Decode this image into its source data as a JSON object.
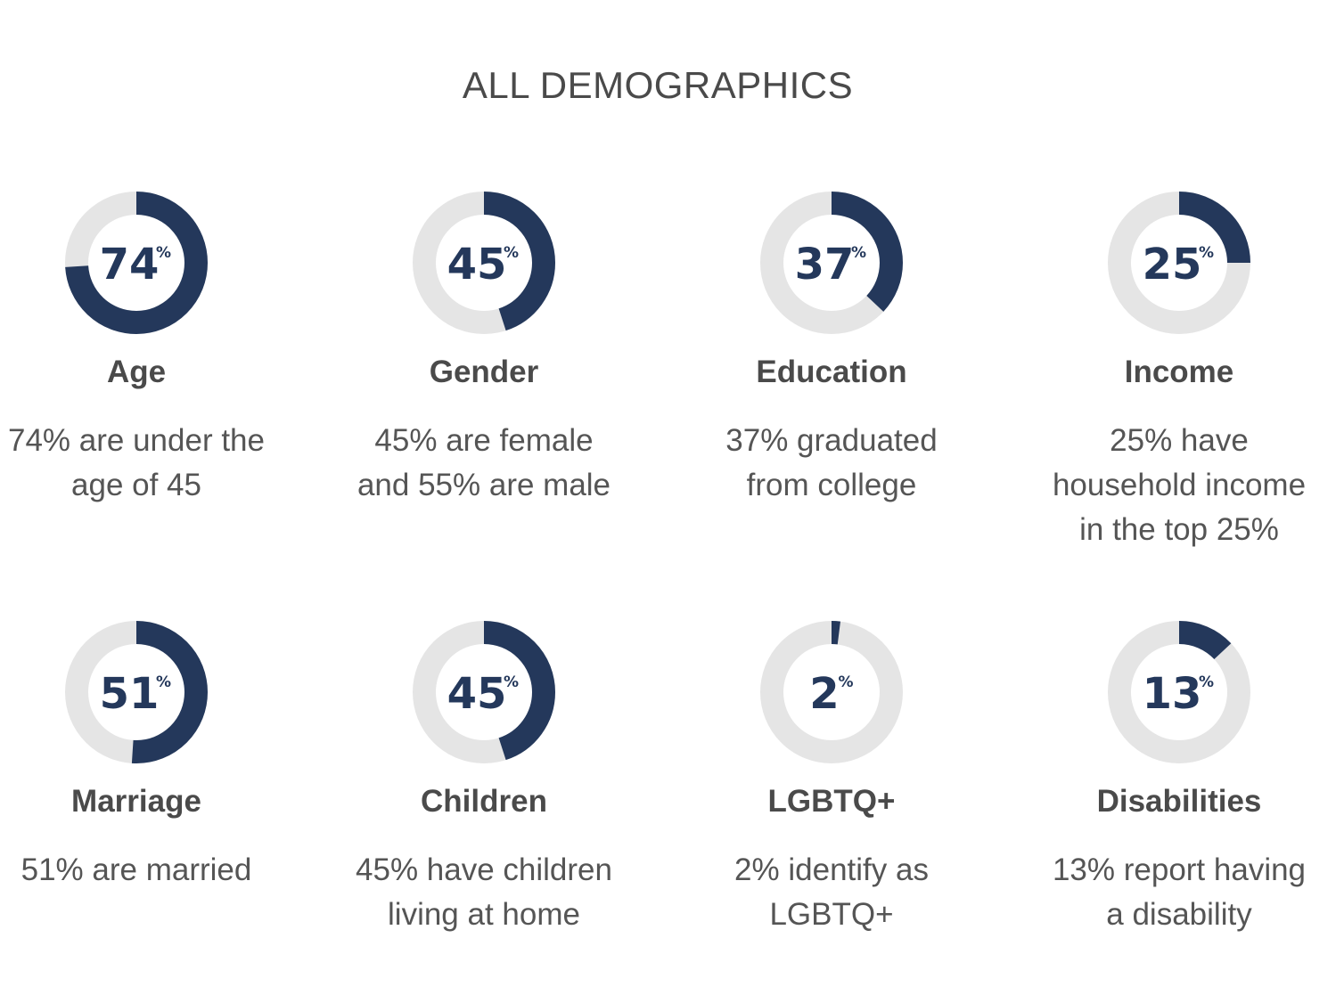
{
  "title": "ALL DEMOGRAPHICS",
  "colors": {
    "fill": "#24385b",
    "track": "#e5e5e5",
    "text": "#4a4a4a"
  },
  "unit": "%",
  "chart_data": {
    "type": "donut",
    "title": "ALL DEMOGRAPHICS",
    "items": [
      {
        "label": "Age",
        "value": 74,
        "description": [
          "74% are under the",
          "age of 45"
        ]
      },
      {
        "label": "Gender",
        "value": 45,
        "description": [
          "45% are female",
          "and 55% are male"
        ]
      },
      {
        "label": "Education",
        "value": 37,
        "description": [
          "37% graduated",
          "from college"
        ]
      },
      {
        "label": "Income",
        "value": 25,
        "description": [
          "25% have",
          "household income",
          "in the top 25%"
        ]
      },
      {
        "label": "Marriage",
        "value": 51,
        "description": [
          "51% are married"
        ]
      },
      {
        "label": "Children",
        "value": 45,
        "description": [
          "45% have children",
          "living at home"
        ]
      },
      {
        "label": "LGBTQ+",
        "value": 2,
        "description": [
          "2% identify as",
          "LGBTQ+"
        ]
      },
      {
        "label": "Disabilities",
        "value": 13,
        "description": [
          "13% report having",
          "a disability"
        ]
      }
    ]
  }
}
